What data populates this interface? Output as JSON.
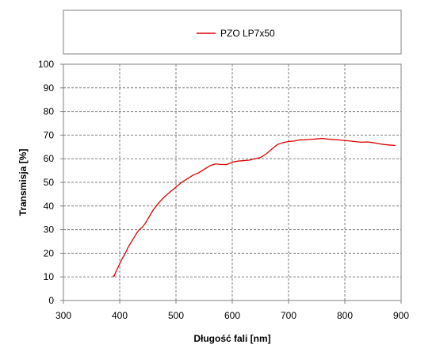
{
  "chart_data": {
    "type": "line",
    "title": "",
    "xlabel": "Długość fali [nm]",
    "ylabel": "Transmisja [%]",
    "xlim": [
      300,
      900
    ],
    "ylim": [
      0,
      100
    ],
    "xticks": [
      "300",
      "400",
      "500",
      "600",
      "700",
      "800",
      "900"
    ],
    "yticks": [
      "0",
      "10",
      "20",
      "30",
      "40",
      "50",
      "60",
      "70",
      "80",
      "90",
      "100"
    ],
    "grid": true,
    "grid_style": "dashed",
    "legend_position": "top",
    "series": [
      {
        "name": "PZO LP7x50",
        "color": "#dd0000",
        "x": [
          388,
          390,
          392,
          395,
          400,
          405,
          410,
          415,
          420,
          425,
          430,
          435,
          440,
          445,
          450,
          455,
          460,
          465,
          470,
          480,
          490,
          500,
          510,
          520,
          530,
          540,
          550,
          560,
          570,
          580,
          590,
          600,
          610,
          620,
          630,
          640,
          650,
          660,
          670,
          680,
          690,
          700,
          710,
          720,
          730,
          740,
          750,
          760,
          770,
          780,
          790,
          800,
          810,
          820,
          830,
          840,
          850,
          860,
          870,
          880,
          890
        ],
        "y": [
          10.5,
          10.2,
          11.5,
          13,
          15.5,
          18,
          20,
          22.5,
          24.5,
          26.5,
          28.5,
          30,
          31,
          32.5,
          34.5,
          36.5,
          38.5,
          40,
          41.5,
          44,
          46,
          48,
          50,
          51.5,
          53,
          54,
          55.5,
          57,
          57.8,
          57.6,
          57.5,
          58.5,
          59,
          59.2,
          59.4,
          60,
          60.5,
          62,
          64,
          66,
          66.8,
          67.3,
          67.5,
          68,
          68,
          68.2,
          68.4,
          68.6,
          68.3,
          68.1,
          68,
          67.7,
          67.5,
          67.2,
          67,
          67.1,
          66.8,
          66.4,
          66,
          65.8,
          65.6
        ]
      }
    ]
  }
}
